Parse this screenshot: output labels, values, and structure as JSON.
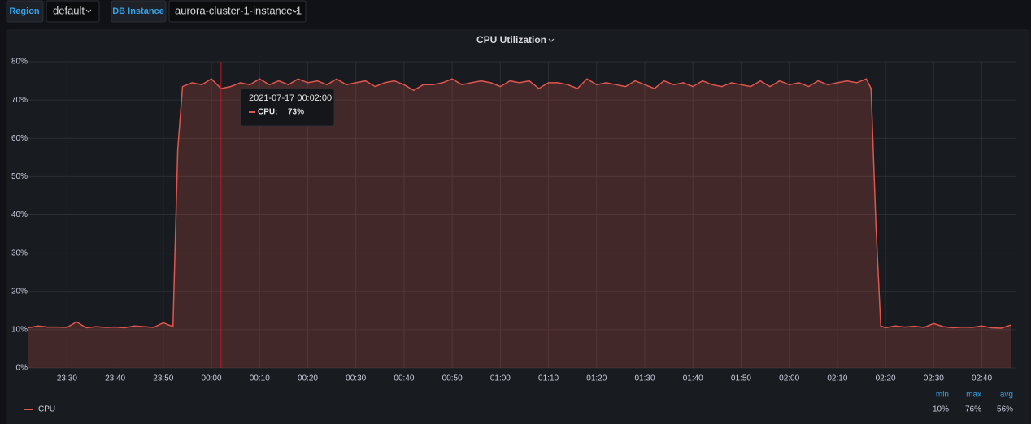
{
  "variables": [
    {
      "label": "Region",
      "value": "default"
    },
    {
      "label": "DB Instance",
      "value": "aurora-cluster-1-instance-1"
    }
  ],
  "chart_data": {
    "type": "area",
    "title": "CPU Utilization",
    "x": [
      "23:22",
      "23:24",
      "23:26",
      "23:28",
      "23:30",
      "23:32",
      "23:34",
      "23:36",
      "23:38",
      "23:40",
      "23:42",
      "23:44",
      "23:46",
      "23:48",
      "23:50",
      "23:52",
      "23:53",
      "23:54",
      "23:56",
      "23:58",
      "00:00",
      "00:02",
      "00:04",
      "00:06",
      "00:08",
      "00:10",
      "00:12",
      "00:14",
      "00:16",
      "00:18",
      "00:20",
      "00:22",
      "00:24",
      "00:26",
      "00:28",
      "00:30",
      "00:32",
      "00:34",
      "00:36",
      "00:38",
      "00:40",
      "00:42",
      "00:44",
      "00:46",
      "00:48",
      "00:50",
      "00:52",
      "00:54",
      "00:56",
      "00:58",
      "01:00",
      "01:02",
      "01:04",
      "01:06",
      "01:08",
      "01:10",
      "01:12",
      "01:14",
      "01:16",
      "01:18",
      "01:20",
      "01:22",
      "01:24",
      "01:26",
      "01:28",
      "01:30",
      "01:32",
      "01:34",
      "01:36",
      "01:38",
      "01:40",
      "01:42",
      "01:44",
      "01:46",
      "01:48",
      "01:50",
      "01:52",
      "01:54",
      "01:56",
      "01:58",
      "02:00",
      "02:02",
      "02:04",
      "02:06",
      "02:08",
      "02:10",
      "02:12",
      "02:14",
      "02:16",
      "02:17",
      "02:18",
      "02:19",
      "02:20",
      "02:22",
      "02:24",
      "02:26",
      "02:28",
      "02:30",
      "02:32",
      "02:34",
      "02:36",
      "02:38",
      "02:40",
      "02:42",
      "02:44",
      "02:46"
    ],
    "series": [
      {
        "name": "CPU",
        "color": "#e0554d",
        "values": [
          10.5,
          11.0,
          10.7,
          10.7,
          10.6,
          12.0,
          10.5,
          10.8,
          10.6,
          10.7,
          10.5,
          11.0,
          10.8,
          10.6,
          11.8,
          10.8,
          57,
          73.5,
          74.5,
          74,
          75.5,
          73,
          73.5,
          74.5,
          74,
          75.5,
          74,
          75,
          74,
          75.5,
          74.5,
          75,
          74,
          75.5,
          74,
          74.5,
          75,
          73.5,
          74.5,
          75,
          74,
          72.5,
          74,
          74,
          74.5,
          75.5,
          74,
          74.5,
          75,
          74.5,
          73.5,
          75,
          74.5,
          75,
          73,
          74.5,
          74.5,
          74,
          73,
          75.5,
          74,
          74.5,
          74,
          73.5,
          75,
          74,
          73,
          75,
          74,
          74.5,
          73.5,
          75,
          74,
          73.5,
          74.5,
          74,
          73.5,
          75,
          73.5,
          75,
          74,
          74.5,
          73.5,
          75,
          74,
          74.5,
          75,
          74.5,
          75.5,
          73,
          37,
          11,
          10.5,
          11,
          10.7,
          10.9,
          10.6,
          11.6,
          10.8,
          10.5,
          10.7,
          10.6,
          11,
          10.5,
          10.4,
          11.2
        ]
      }
    ],
    "xlim": [
      "23:22",
      "02:47"
    ],
    "xticks": [
      "23:30",
      "23:40",
      "23:50",
      "00:00",
      "00:10",
      "00:20",
      "00:30",
      "00:40",
      "00:50",
      "01:00",
      "01:10",
      "01:20",
      "01:30",
      "01:40",
      "01:50",
      "02:00",
      "02:10",
      "02:20",
      "02:30",
      "02:40"
    ],
    "ylim": [
      0,
      80
    ],
    "yticks": [
      {
        "value": 0,
        "label": "0%"
      },
      {
        "value": 10,
        "label": "10%"
      },
      {
        "value": 20,
        "label": "20%"
      },
      {
        "value": 30,
        "label": "30%"
      },
      {
        "value": 40,
        "label": "40%"
      },
      {
        "value": 50,
        "label": "50%"
      },
      {
        "value": 60,
        "label": "60%"
      },
      {
        "value": 70,
        "label": "70%"
      },
      {
        "value": 80,
        "label": "80%"
      }
    ],
    "grid": true,
    "tooltip": {
      "title": "2021-07-17 00:02:00",
      "x": "00:02",
      "label": "CPU:",
      "value": 73,
      "value_label": "73%"
    },
    "legend_stats": {
      "headers": [
        "min",
        "max",
        "avg"
      ],
      "values": [
        "10%",
        "76%",
        "56%"
      ]
    }
  }
}
